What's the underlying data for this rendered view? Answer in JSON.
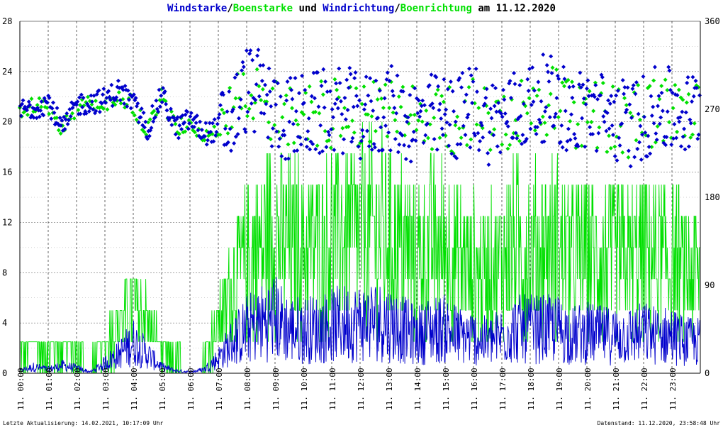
{
  "title": {
    "part1": "Windstarke",
    "sep1": "/",
    "part2": "Boenstarke",
    "mid": " und ",
    "part3": "Windrichtung",
    "sep2": "/",
    "part4": "Boenrichtung",
    "end": " am 11.12.2020"
  },
  "footer": {
    "left": "Letzte Aktualisierung: 14.02.2021, 10:17:09 Uhr",
    "right": "Datenstand: 11.12.2020, 23:58:48 Uhr"
  },
  "colors": {
    "wind": "#0000cc",
    "gust": "#00e000",
    "grid": "#000000",
    "title_dark": "#000000"
  },
  "chart_data": {
    "type": "line",
    "date": "11.12.2020",
    "xlim": [
      0,
      24
    ],
    "ylim_left": [
      0,
      28
    ],
    "ylim_right": [
      0,
      360
    ],
    "left_ticks": [
      "0",
      "4",
      "8",
      "12",
      "16",
      "20",
      "24",
      "28"
    ],
    "right_ticks": [
      "0",
      "90",
      "180",
      "270",
      "360"
    ],
    "x_ticks": [
      "00:00",
      "01:00",
      "02:00",
      "03:00",
      "04:00",
      "05:00",
      "06:00",
      "07:00",
      "08:00",
      "09:00",
      "10:00",
      "11:00",
      "12:00",
      "13:00",
      "14:00",
      "15:00",
      "16:00",
      "17:00",
      "18:00",
      "19:00",
      "20:00",
      "21:00",
      "22:00",
      "23:00"
    ],
    "x_tick_prefix": "11.",
    "grid": true,
    "series": [
      {
        "name": "Windstarke",
        "kind": "speed",
        "x": [
          0,
          0.5,
          1,
          1.5,
          2,
          2.5,
          3,
          3.5,
          4,
          4.5,
          5,
          5.5,
          6,
          6.5,
          7,
          7.5,
          8,
          8.5,
          9,
          9.5,
          10,
          10.5,
          11,
          11.5,
          12,
          12.5,
          13,
          13.5,
          14,
          14.5,
          15,
          15.5,
          16,
          16.5,
          17,
          17.5,
          18,
          18.5,
          19,
          19.5,
          20,
          20.5,
          21,
          21.5,
          22,
          22.5,
          23,
          23.5,
          24
        ],
        "y": [
          0.2,
          0.5,
          0.3,
          0.6,
          0.4,
          0.1,
          0.8,
          1.5,
          2.5,
          1.5,
          0.5,
          0.2,
          0.1,
          0.3,
          1.2,
          2.5,
          3.5,
          4,
          4.5,
          3.5,
          3.5,
          3.5,
          3.8,
          4,
          4,
          4.2,
          4,
          3.5,
          3,
          3.5,
          3.5,
          3,
          2.8,
          2.5,
          3,
          3.5,
          3.5,
          3.5,
          3.5,
          3,
          3.2,
          3,
          3,
          3,
          3.2,
          3,
          3,
          2.5,
          2.5
        ]
      },
      {
        "name": "Boenstarke",
        "kind": "speed",
        "x": [
          0,
          0.5,
          1,
          1.5,
          2,
          2.5,
          3,
          3.5,
          4,
          4.5,
          5,
          5.5,
          6,
          6.5,
          7,
          7.5,
          8,
          8.5,
          9,
          9.5,
          10,
          10.5,
          11,
          11.5,
          12,
          12.5,
          13,
          13.5,
          14,
          14.5,
          15,
          15.5,
          16,
          16.5,
          17,
          17.5,
          18,
          18.5,
          19,
          19.5,
          20,
          20.5,
          21,
          21.5,
          22,
          22.5,
          23,
          23.5,
          24
        ],
        "y": [
          1.2,
          2,
          1.5,
          2,
          1.5,
          0.5,
          2.5,
          4,
          5,
          4,
          1.5,
          1,
          0.5,
          1,
          4,
          7,
          9,
          10,
          11,
          10,
          10,
          10,
          11,
          11,
          11,
          11.5,
          11,
          10,
          9,
          10,
          10,
          9,
          8.5,
          8,
          9,
          10,
          10,
          10,
          10,
          9,
          9.5,
          9,
          9,
          9,
          9.5,
          9,
          9,
          8,
          8
        ]
      },
      {
        "name": "Windrichtung",
        "kind": "direction",
        "x": [
          0,
          0.5,
          1,
          1.5,
          2,
          2.5,
          3,
          3.5,
          4,
          4.5,
          5,
          5.5,
          6,
          6.5,
          7,
          7.5,
          8,
          8.5,
          9,
          9.5,
          10,
          10.5,
          11,
          11.5,
          12,
          12.5,
          13,
          13.5,
          14,
          14.5,
          15,
          15.5,
          16,
          16.5,
          17,
          17.5,
          18,
          18.5,
          19,
          19.5,
          20,
          20.5,
          21,
          21.5,
          22,
          22.5,
          23,
          23.5,
          24
        ],
        "y": [
          269,
          272,
          278,
          248,
          275,
          277,
          280,
          290,
          275,
          250,
          285,
          250,
          260,
          245,
          250,
          262,
          292,
          285,
          265,
          260,
          262,
          265,
          268,
          270,
          260,
          265,
          272,
          260,
          258,
          262,
          260,
          262,
          275,
          258,
          262,
          268,
          275,
          282,
          278,
          262,
          272,
          265,
          260,
          255,
          262,
          270,
          268,
          262,
          275
        ]
      },
      {
        "name": "Boenrichtung",
        "kind": "direction",
        "x": [
          0,
          0.5,
          1,
          1.5,
          2,
          2.5,
          3,
          3.5,
          4,
          4.5,
          5,
          5.5,
          6,
          6.5,
          7,
          7.5,
          8,
          8.5,
          9,
          9.5,
          10,
          10.5,
          11,
          11.5,
          12,
          12.5,
          13,
          13.5,
          14,
          14.5,
          15,
          15.5,
          16,
          16.5,
          17,
          17.5,
          18,
          18.5,
          19,
          19.5,
          20,
          20.5,
          21,
          21.5,
          22,
          22.5,
          23,
          23.5,
          24
        ],
        "y": [
          269,
          272,
          275,
          250,
          272,
          275,
          268,
          285,
          275,
          248,
          282,
          250,
          255,
          245,
          250,
          262,
          285,
          280,
          265,
          262,
          262,
          262,
          265,
          268,
          262,
          265,
          270,
          262,
          258,
          262,
          260,
          260,
          272,
          258,
          262,
          268,
          275,
          280,
          275,
          262,
          270,
          265,
          258,
          255,
          262,
          268,
          268,
          262,
          270
        ]
      }
    ]
  }
}
